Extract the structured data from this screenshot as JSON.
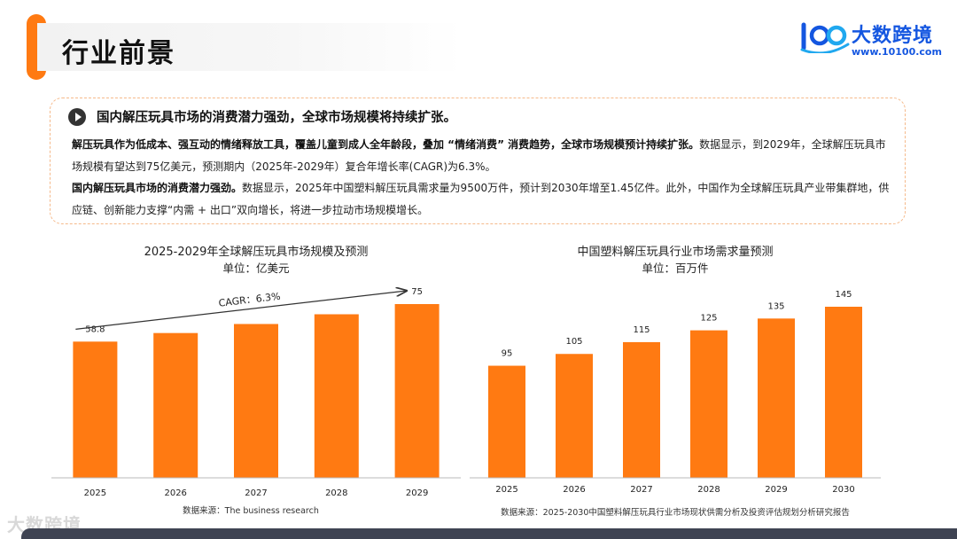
{
  "header": {
    "title": "行业前景",
    "brand_name": "大数跨境",
    "brand_url": "www.10100.com",
    "brand_mark": "100",
    "watermark": "大数跨境"
  },
  "summary": {
    "headline": "国内解压玩具市场的消费潜力强劲，全球市场规模将持续扩张。",
    "p1_bold": "解压玩具作为低成本、强互动的情绪释放工具，覆盖儿童到成人全年龄段，叠加 “情绪消费” 消费趋势，全球市场规模预计持续扩张。",
    "p1_rest": "数据显示，到2029年，全球解压玩具市场规模有望达到75亿美元，预测期内（2025年-2029年）复合年增长率(CAGR)为6.3%。",
    "p2_bold": "国内解压玩具市场的消费潜力强劲。",
    "p2_rest": "数据显示，2025年中国塑料解压玩具需求量为9500万件，预计到2030年增至1.45亿件。此外，中国作为全球解压玩具产业带集群地，供应链、创新能力支撑“内需 + 出口”双向增长，将进一步拉动市场规模增长。"
  },
  "colors": {
    "accent": "#ff7a12",
    "bar": "#ff7a12",
    "brand": "#1456e0"
  },
  "chart_data": [
    {
      "type": "bar",
      "title": "2025-2029年全球解压玩具市场规模及预测",
      "subtitle": "单位：亿美元",
      "categories": [
        "2025",
        "2026",
        "2027",
        "2028",
        "2029"
      ],
      "values": [
        58.8,
        62.5,
        66.4,
        70.6,
        75
      ],
      "value_labels": [
        "58.8",
        "",
        "",
        "",
        "75"
      ],
      "annotation": "CAGR：6.3%",
      "ylim": [
        0,
        75
      ],
      "grid": false,
      "legend": "none",
      "source": "数据来源：The business research"
    },
    {
      "type": "bar",
      "title": "中国塑料解压玩具行业市场需求量预测",
      "subtitle": "单位：百万件",
      "categories": [
        "2025",
        "2026",
        "2027",
        "2028",
        "2029",
        "2030"
      ],
      "values": [
        95,
        105,
        115,
        125,
        135,
        145
      ],
      "value_labels": [
        "95",
        "105",
        "115",
        "125",
        "135",
        "145"
      ],
      "ylim": [
        0,
        145
      ],
      "grid": false,
      "legend": "none",
      "source": "数据来源：2025-2030中国塑料解压玩具行业市场现状供需分析及投资评估规划分析研究报告"
    }
  ]
}
